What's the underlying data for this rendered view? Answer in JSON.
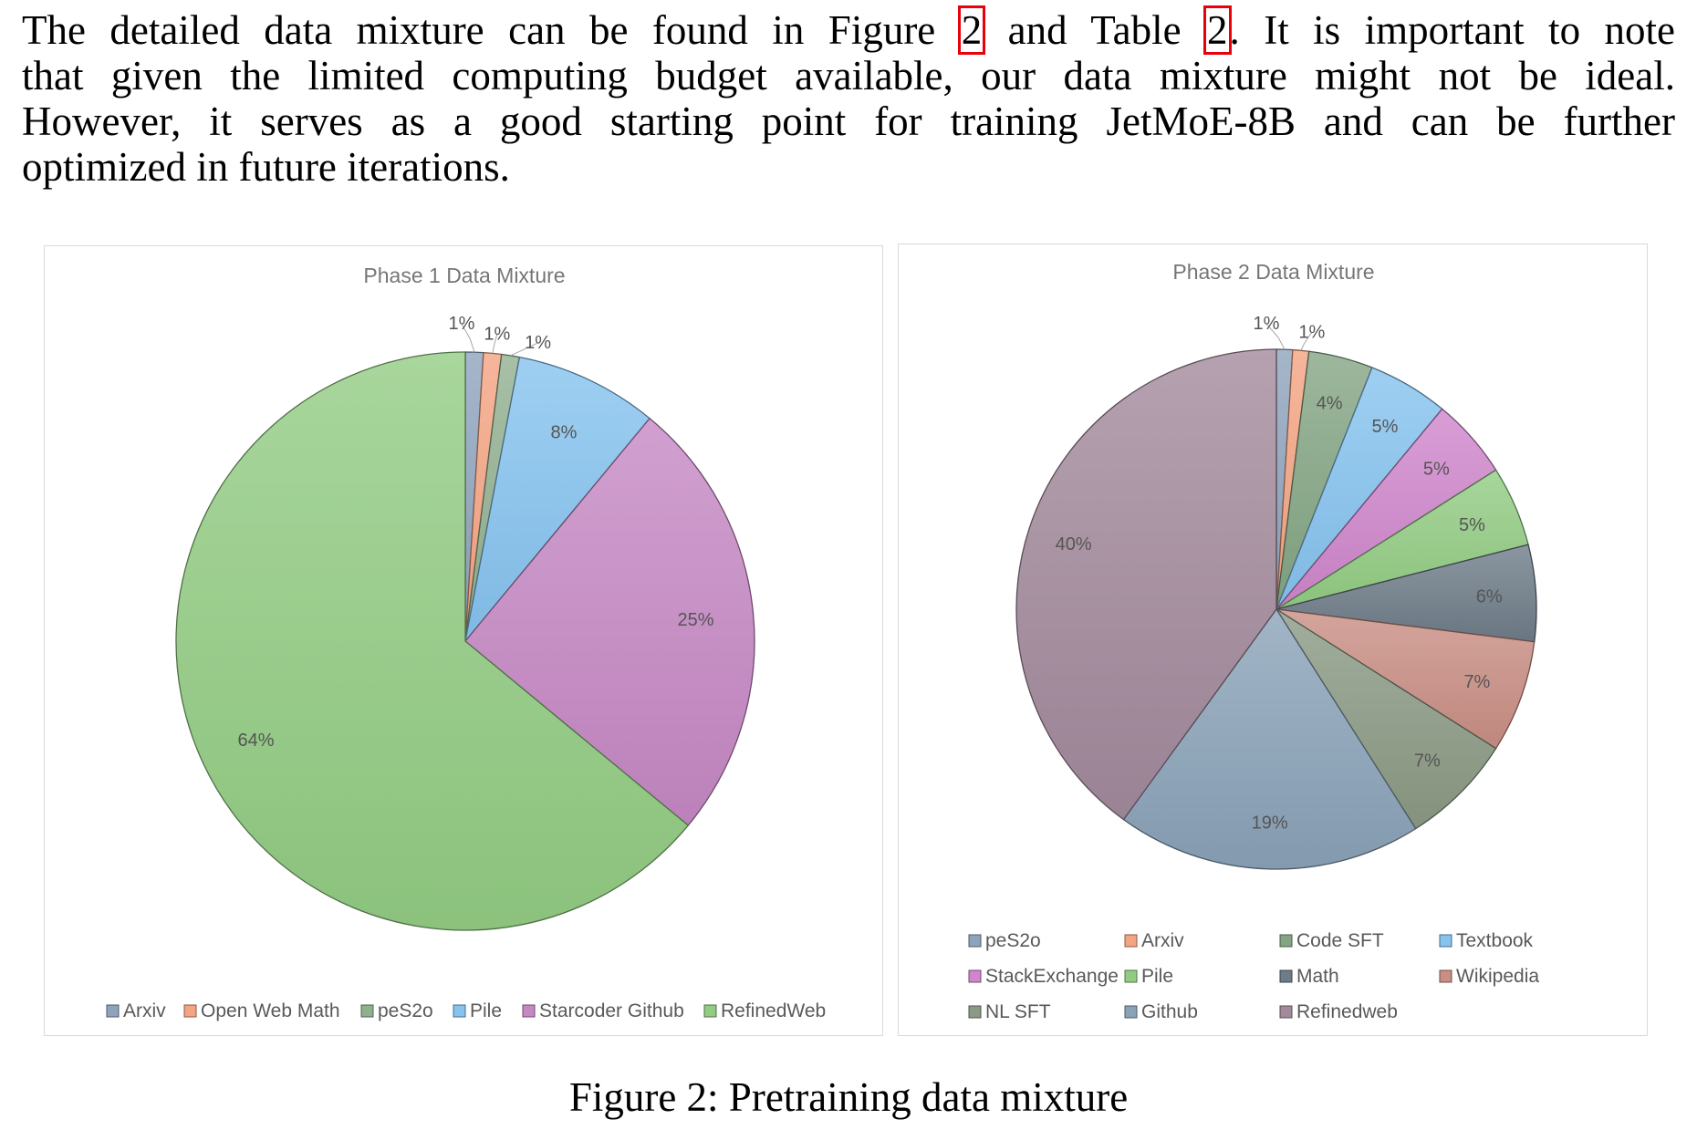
{
  "paragraph": {
    "line1": [
      "The detailed data mixture can be found in Figure ",
      "2",
      " and Table ",
      "2",
      ".  It is important to note"
    ],
    "line2": "that given the limited computing budget available, our data mixture might not be ideal.",
    "line3": "However, it serves as a good starting point for training JetMoE-8B and can be further",
    "line4": "optimized in future iterations."
  },
  "caption": "Figure 2: Pretraining data mixture",
  "chart_data": [
    {
      "type": "pie",
      "title": "Phase 1 Data Mixture",
      "categories": [
        "Arxiv",
        "Open Web Math",
        "peS2o",
        "Pile",
        "Starcoder Github",
        "RefinedWeb"
      ],
      "values": [
        1,
        1,
        1,
        8,
        25,
        64
      ],
      "labels": [
        "1%",
        "1%",
        "1%",
        "8%",
        "25%",
        "64%"
      ],
      "colors": [
        "#8ea4bd",
        "#f4a482",
        "#92b090",
        "#86c3ef",
        "#c688c4",
        "#92cc83"
      ],
      "legend_position": "bottom"
    },
    {
      "type": "pie",
      "title": "Phase 2 Data Mixture",
      "categories": [
        "peS2o",
        "Arxiv",
        "Code SFT",
        "Textbook",
        "StackExchange",
        "Pile",
        "Math",
        "Wikipedia",
        "NL SFT",
        "Github",
        "Refinedweb"
      ],
      "values": [
        1,
        1,
        4,
        5,
        5,
        5,
        6,
        7,
        7,
        19,
        40
      ],
      "labels": [
        "1%",
        "1%",
        "4%",
        "5%",
        "5%",
        "5%",
        "6%",
        "7%",
        "7%",
        "19%",
        "40%"
      ],
      "colors": [
        "#8ea4bd",
        "#f4a482",
        "#84a584",
        "#86c3ef",
        "#cf86cc",
        "#92cc83",
        "#6e7c88",
        "#c98e84",
        "#8b9a84",
        "#8aa2b8",
        "#a28a9c"
      ],
      "legend_position": "bottom"
    }
  ]
}
